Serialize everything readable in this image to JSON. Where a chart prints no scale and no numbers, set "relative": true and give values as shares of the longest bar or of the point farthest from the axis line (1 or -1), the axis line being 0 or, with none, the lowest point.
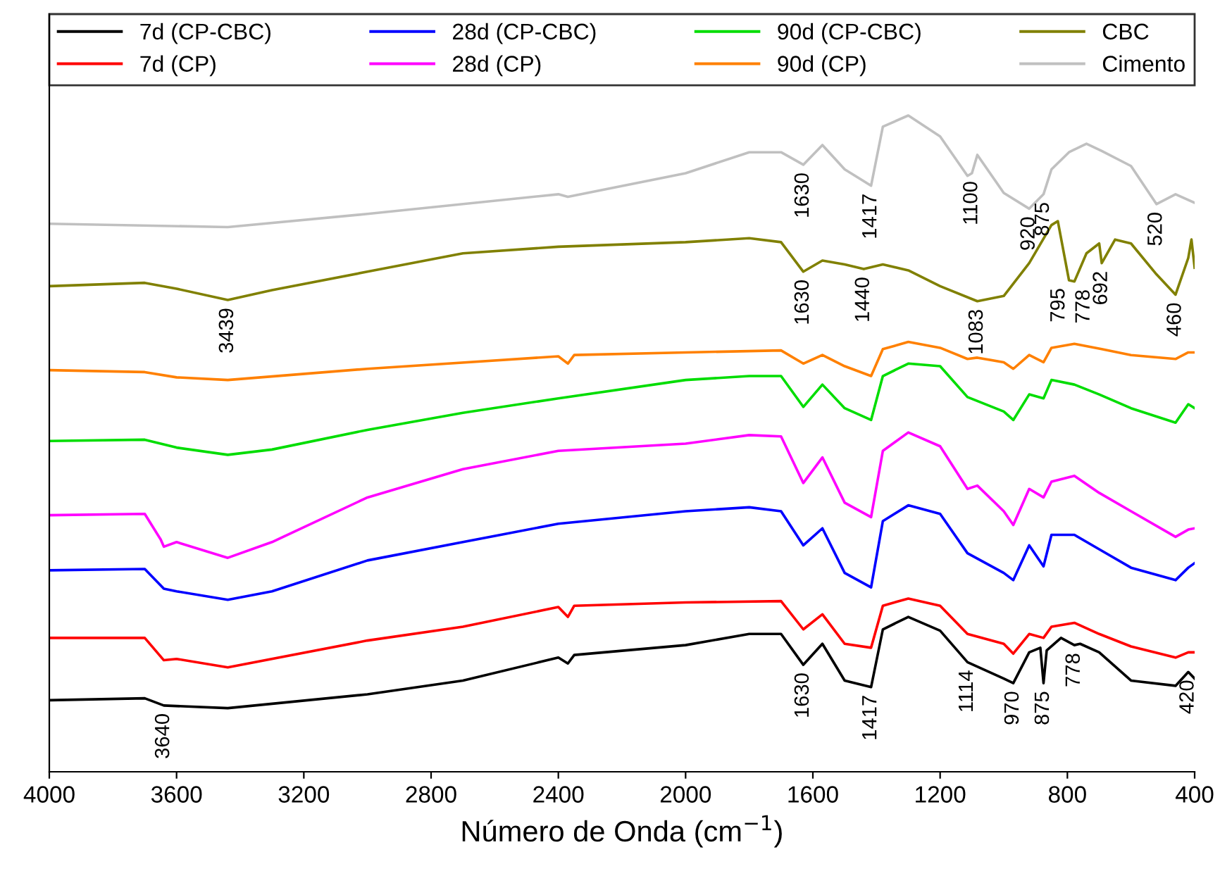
{
  "chart_data": {
    "type": "line",
    "relative": true,
    "xlabel": "Número de Onda (cm$^{−1}$)",
    "xlim": [
      4000,
      400
    ],
    "xticks": [
      4000,
      3600,
      3200,
      2800,
      2400,
      2000,
      1600,
      1200,
      800,
      400
    ],
    "legend": "top",
    "grid": false,
    "marker": "none",
    "line_style": "solid",
    "series": [
      {
        "name": "7d (CP-CBC)",
        "color": "#000000",
        "x": [
          4000,
          3700,
          3640,
          3439,
          3000,
          2700,
          2400,
          2370,
          2350,
          2000,
          1800,
          1700,
          1630,
          1570,
          1500,
          1417,
          1380,
          1300,
          1200,
          1114,
          1000,
          970,
          920,
          885,
          875,
          865,
          820,
          778,
          760,
          700,
          600,
          460,
          420,
          400
        ],
        "values": [
          0.109,
          0.112,
          0.101,
          0.097,
          0.118,
          0.139,
          0.174,
          0.165,
          0.178,
          0.193,
          0.21,
          0.21,
          0.163,
          0.195,
          0.139,
          0.129,
          0.217,
          0.236,
          0.215,
          0.167,
          0.142,
          0.135,
          0.182,
          0.189,
          0.135,
          0.185,
          0.204,
          0.193,
          0.195,
          0.182,
          0.139,
          0.131,
          0.152,
          0.142
        ]
      },
      {
        "name": "28d (CP-CBC)",
        "color": "#0000ff",
        "x": [
          4000,
          3700,
          3640,
          3600,
          3439,
          3300,
          3000,
          2700,
          2400,
          2000,
          1800,
          1700,
          1630,
          1570,
          1500,
          1417,
          1380,
          1300,
          1200,
          1114,
          1000,
          970,
          920,
          875,
          850,
          778,
          700,
          600,
          460,
          420,
          400
        ],
        "values": [
          0.307,
          0.309,
          0.279,
          0.275,
          0.262,
          0.275,
          0.322,
          0.35,
          0.378,
          0.397,
          0.403,
          0.397,
          0.345,
          0.371,
          0.303,
          0.281,
          0.382,
          0.406,
          0.393,
          0.333,
          0.303,
          0.292,
          0.345,
          0.313,
          0.361,
          0.361,
          0.339,
          0.311,
          0.292,
          0.311,
          0.318
        ]
      },
      {
        "name": "90d (CP-CBC)",
        "color": "#00dd00",
        "x": [
          4000,
          3700,
          3600,
          3439,
          3300,
          3000,
          2700,
          2400,
          2000,
          1800,
          1700,
          1630,
          1570,
          1500,
          1417,
          1380,
          1300,
          1200,
          1114,
          1000,
          970,
          920,
          875,
          850,
          778,
          700,
          600,
          460,
          420,
          400
        ],
        "values": [
          0.504,
          0.506,
          0.494,
          0.483,
          0.491,
          0.521,
          0.547,
          0.569,
          0.597,
          0.603,
          0.603,
          0.556,
          0.59,
          0.554,
          0.536,
          0.603,
          0.622,
          0.618,
          0.571,
          0.549,
          0.536,
          0.575,
          0.569,
          0.597,
          0.59,
          0.575,
          0.554,
          0.532,
          0.56,
          0.554
        ]
      },
      {
        "name": "CBC",
        "color": "#808000",
        "x": [
          4000,
          3700,
          3600,
          3439,
          3300,
          3000,
          2700,
          2400,
          2000,
          1800,
          1700,
          1630,
          1570,
          1500,
          1440,
          1380,
          1300,
          1200,
          1083,
          1000,
          920,
          850,
          830,
          795,
          778,
          740,
          700,
          692,
          650,
          600,
          520,
          460,
          420,
          410,
          400
        ],
        "values": [
          0.74,
          0.745,
          0.736,
          0.719,
          0.734,
          0.762,
          0.79,
          0.8,
          0.807,
          0.813,
          0.807,
          0.762,
          0.779,
          0.773,
          0.766,
          0.773,
          0.764,
          0.74,
          0.717,
          0.725,
          0.775,
          0.833,
          0.839,
          0.749,
          0.747,
          0.79,
          0.805,
          0.775,
          0.811,
          0.805,
          0.758,
          0.727,
          0.783,
          0.811,
          0.768
        ]
      },
      {
        "name": "7d (CP)",
        "color": "#ff0000",
        "x": [
          4000,
          3700,
          3640,
          3600,
          3439,
          3000,
          2700,
          2400,
          2370,
          2350,
          2000,
          1700,
          1630,
          1570,
          1500,
          1417,
          1380,
          1300,
          1200,
          1114,
          1000,
          970,
          920,
          875,
          850,
          778,
          700,
          600,
          460,
          420,
          400
        ],
        "values": [
          0.204,
          0.204,
          0.17,
          0.172,
          0.159,
          0.2,
          0.221,
          0.251,
          0.236,
          0.253,
          0.258,
          0.26,
          0.217,
          0.24,
          0.195,
          0.189,
          0.253,
          0.264,
          0.253,
          0.21,
          0.195,
          0.18,
          0.21,
          0.204,
          0.221,
          0.227,
          0.21,
          0.191,
          0.174,
          0.182,
          0.182
        ]
      },
      {
        "name": "28d (CP)",
        "color": "#ff00ff",
        "x": [
          4000,
          3700,
          3650,
          3640,
          3600,
          3439,
          3300,
          3000,
          2700,
          2400,
          2000,
          1800,
          1700,
          1630,
          1570,
          1500,
          1417,
          1380,
          1300,
          1200,
          1114,
          1083,
          1000,
          970,
          920,
          875,
          850,
          778,
          700,
          600,
          460,
          420,
          400
        ],
        "values": [
          0.391,
          0.393,
          0.354,
          0.343,
          0.35,
          0.326,
          0.35,
          0.418,
          0.461,
          0.489,
          0.5,
          0.513,
          0.511,
          0.44,
          0.479,
          0.41,
          0.388,
          0.489,
          0.517,
          0.496,
          0.431,
          0.436,
          0.397,
          0.376,
          0.431,
          0.418,
          0.442,
          0.451,
          0.425,
          0.397,
          0.358,
          0.369,
          0.371
        ]
      },
      {
        "name": "90d (CP)",
        "color": "#ff8000",
        "x": [
          4000,
          3700,
          3600,
          3439,
          3000,
          2400,
          2370,
          2350,
          2000,
          1700,
          1630,
          1570,
          1500,
          1417,
          1380,
          1300,
          1200,
          1114,
          1083,
          1000,
          970,
          920,
          875,
          850,
          778,
          692,
          600,
          460,
          420,
          400
        ],
        "values": [
          0.612,
          0.609,
          0.601,
          0.597,
          0.614,
          0.633,
          0.622,
          0.635,
          0.639,
          0.642,
          0.622,
          0.635,
          0.618,
          0.603,
          0.644,
          0.655,
          0.646,
          0.629,
          0.631,
          0.624,
          0.614,
          0.635,
          0.624,
          0.646,
          0.652,
          0.644,
          0.635,
          0.629,
          0.639,
          0.639
        ]
      },
      {
        "name": "Cimento",
        "color": "#c0c0c0",
        "x": [
          4000,
          3439,
          3000,
          2400,
          2370,
          2000,
          1800,
          1700,
          1630,
          1570,
          1500,
          1417,
          1380,
          1300,
          1200,
          1114,
          1100,
          1083,
          1000,
          920,
          875,
          850,
          795,
          740,
          692,
          600,
          520,
          460,
          400
        ],
        "values": [
          0.835,
          0.83,
          0.85,
          0.88,
          0.876,
          0.912,
          0.944,
          0.944,
          0.925,
          0.955,
          0.918,
          0.893,
          0.983,
          1.0,
          0.968,
          0.908,
          0.912,
          0.94,
          0.882,
          0.858,
          0.88,
          0.918,
          0.944,
          0.957,
          0.946,
          0.923,
          0.865,
          0.88,
          0.867
        ]
      }
    ],
    "annotations": [
      {
        "text": "1630",
        "x": 1630,
        "y": 0.925
      },
      {
        "text": "1417",
        "x": 1417,
        "y": 0.893
      },
      {
        "text": "1100",
        "x": 1100,
        "y": 0.912
      },
      {
        "text": "920",
        "x": 920,
        "y": 0.858
      },
      {
        "text": "875",
        "x": 875,
        "y": 0.88
      },
      {
        "text": "520",
        "x": 520,
        "y": 0.865
      },
      {
        "text": "3439",
        "x": 3439,
        "y": 0.719
      },
      {
        "text": "1630",
        "x": 1630,
        "y": 0.762
      },
      {
        "text": "1440",
        "x": 1440,
        "y": 0.766
      },
      {
        "text": "1083",
        "x": 1083,
        "y": 0.717
      },
      {
        "text": "795",
        "x": 795,
        "y": 0.749
      },
      {
        "text": "778",
        "x": 778,
        "y": 0.747
      },
      {
        "text": "692",
        "x": 692,
        "y": 0.775
      },
      {
        "text": "460",
        "x": 460,
        "y": 0.727
      },
      {
        "text": "3640",
        "x": 3640,
        "y": 0.101
      },
      {
        "text": "1630",
        "x": 1630,
        "y": 0.163
      },
      {
        "text": "1417",
        "x": 1417,
        "y": 0.129
      },
      {
        "text": "1114",
        "x": 1114,
        "y": 0.167
      },
      {
        "text": "970",
        "x": 970,
        "y": 0.135
      },
      {
        "text": "875",
        "x": 875,
        "y": 0.135
      },
      {
        "text": "778",
        "x": 778,
        "y": 0.193
      },
      {
        "text": "420",
        "x": 420,
        "y": 0.152
      }
    ]
  }
}
